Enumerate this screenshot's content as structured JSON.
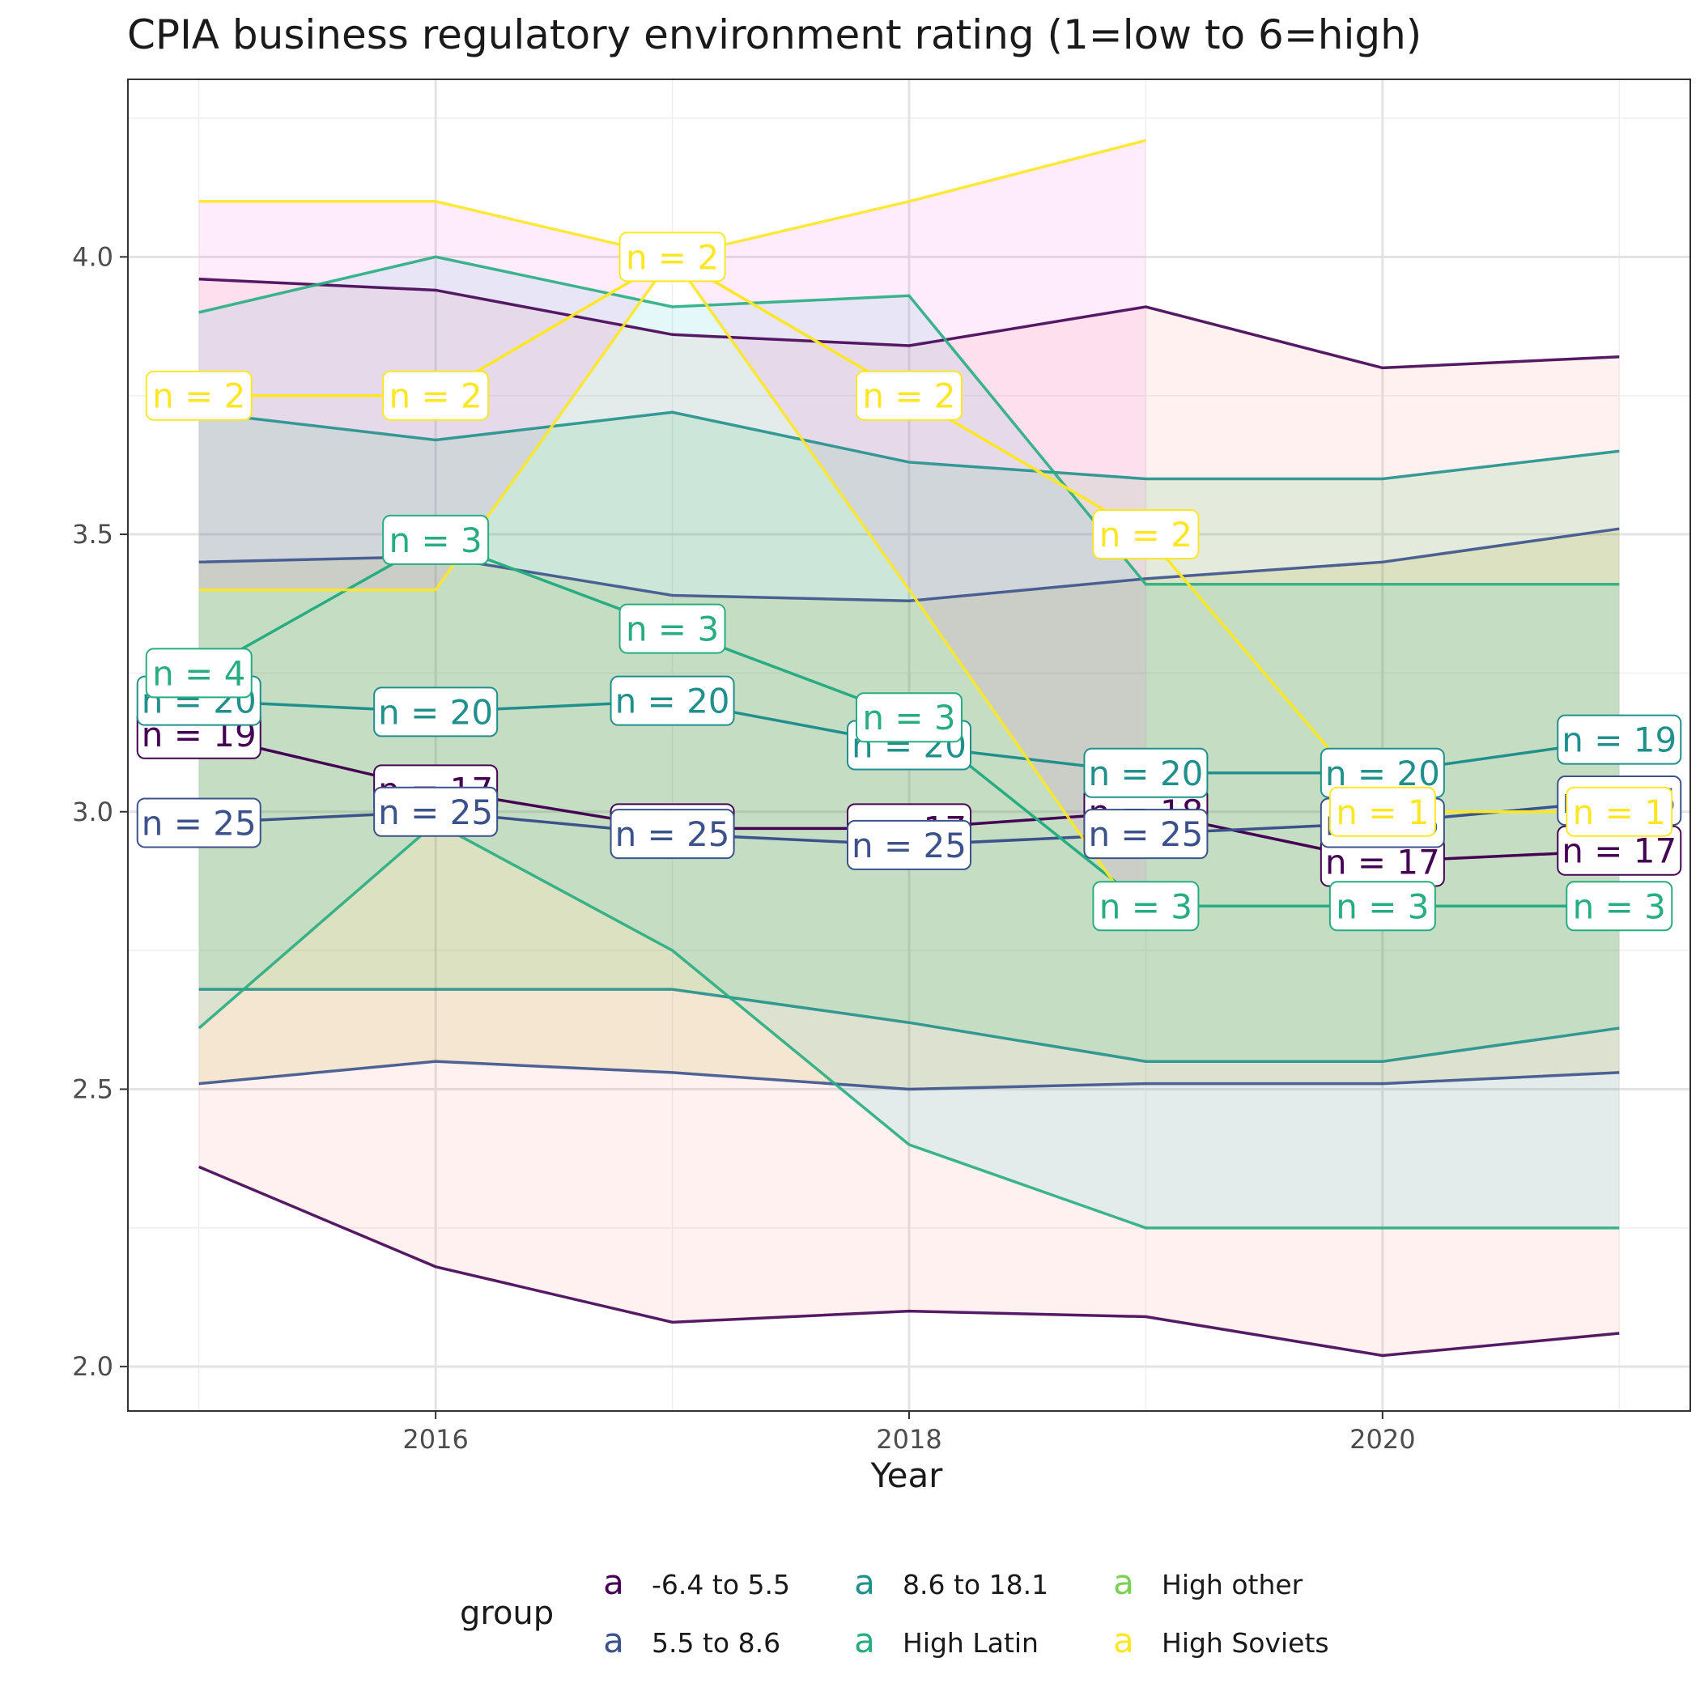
{
  "chart_data": {
    "type": "line",
    "title": "CPIA business regulatory environment rating (1=low to 6=high)",
    "xlabel": "Year",
    "ylabel": "",
    "x_ticks": [
      "2016",
      "2018",
      "2020"
    ],
    "y_ticks": [
      "2.0",
      "2.5",
      "3.0",
      "3.5",
      "4.0"
    ],
    "xlim": [
      2014.7,
      2021.3
    ],
    "ylim": [
      1.92,
      4.32
    ],
    "grid": true,
    "legend": {
      "title": "group",
      "placement": "bottom",
      "glyph": "a",
      "entries": [
        "-6.4 to 5.5",
        "5.5 to 8.6",
        "8.6 to 18.1",
        "High Latin",
        "High other",
        "High Soviets"
      ]
    },
    "series": [
      {
        "name": "-6.4 to 5.5",
        "color": "#440154",
        "x": [
          2015,
          2016,
          2017,
          2018,
          2019,
          2020,
          2021
        ],
        "mean": [
          3.14,
          3.04,
          2.97,
          2.97,
          3.0,
          2.91,
          2.93
        ],
        "upper": [
          3.96,
          3.94,
          3.86,
          3.84,
          3.91,
          3.8,
          3.82
        ],
        "lower": [
          2.36,
          2.18,
          2.08,
          2.1,
          2.09,
          2.02,
          2.06
        ],
        "n": [
          19,
          17,
          17,
          17,
          18,
          17,
          17
        ]
      },
      {
        "name": "5.5 to 8.6",
        "color": "#3B528B",
        "x": [
          2015,
          2016,
          2017,
          2018,
          2019,
          2020,
          2021
        ],
        "mean": [
          2.98,
          3.0,
          2.96,
          2.94,
          2.96,
          2.98,
          3.02
        ],
        "upper": [
          3.45,
          3.46,
          3.39,
          3.38,
          3.42,
          3.45,
          3.51
        ],
        "lower": [
          2.51,
          2.55,
          2.53,
          2.5,
          2.51,
          2.51,
          2.53
        ],
        "n": [
          25,
          25,
          25,
          25,
          25,
          25,
          25
        ]
      },
      {
        "name": "8.6 to 18.1",
        "color": "#21908C",
        "x": [
          2015,
          2016,
          2017,
          2018,
          2019,
          2020,
          2021
        ],
        "mean": [
          3.2,
          3.18,
          3.2,
          3.12,
          3.07,
          3.07,
          3.13
        ],
        "upper": [
          3.72,
          3.67,
          3.72,
          3.63,
          3.6,
          3.6,
          3.65
        ],
        "lower": [
          2.68,
          2.68,
          2.68,
          2.62,
          2.55,
          2.55,
          2.61
        ],
        "n": [
          20,
          20,
          20,
          20,
          20,
          20,
          19
        ]
      },
      {
        "name": "High Latin",
        "color": "#27AD81",
        "x": [
          2015,
          2016,
          2017,
          2018,
          2019,
          2020,
          2021
        ],
        "mean": [
          3.25,
          3.49,
          3.33,
          3.17,
          2.83,
          2.83,
          2.83
        ],
        "upper": [
          3.9,
          4.0,
          3.91,
          3.93,
          3.41,
          3.41,
          3.41
        ],
        "lower": [
          2.61,
          2.98,
          2.75,
          2.4,
          2.25,
          2.25,
          2.25
        ],
        "n": [
          4,
          3,
          3,
          3,
          3,
          3,
          3
        ]
      },
      {
        "name": "High Soviets",
        "color": "#FDE725",
        "x": [
          2015,
          2016,
          2017,
          2018,
          2019,
          2020,
          2021
        ],
        "mean": [
          3.75,
          3.75,
          4.0,
          3.75,
          3.5,
          3.0,
          3.0
        ],
        "upper": [
          4.1,
          4.1,
          4.0,
          4.1,
          4.21,
          null,
          null
        ],
        "lower": [
          3.4,
          3.4,
          4.0,
          3.4,
          2.79,
          null,
          null
        ],
        "n": [
          2,
          2,
          2,
          2,
          2,
          1,
          1
        ]
      }
    ]
  }
}
